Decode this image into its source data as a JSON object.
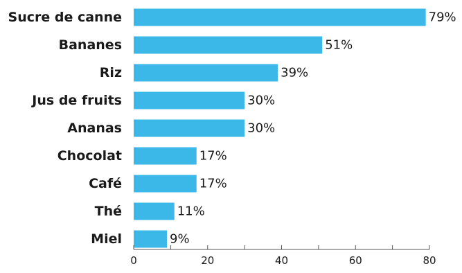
{
  "chart_data": {
    "type": "bar",
    "orientation": "horizontal",
    "categories": [
      "Sucre de canne",
      "Bananes",
      "Riz",
      "Jus de fruits",
      "Ananas",
      "Chocolat",
      "Café",
      "Thé",
      "Miel"
    ],
    "values": [
      79,
      51,
      39,
      30,
      30,
      17,
      17,
      11,
      9
    ],
    "value_labels": [
      "79%",
      "51%",
      "39%",
      "30%",
      "30%",
      "17%",
      "17%",
      "11%",
      "9%"
    ],
    "title": "",
    "xlabel": "",
    "ylabel": "",
    "xlim": [
      0,
      80
    ],
    "x_ticks": [
      0,
      20,
      40,
      60,
      80
    ],
    "grid": false,
    "legend": "none",
    "bar_color": "#3bb7e8",
    "axis_color": "#555555"
  }
}
